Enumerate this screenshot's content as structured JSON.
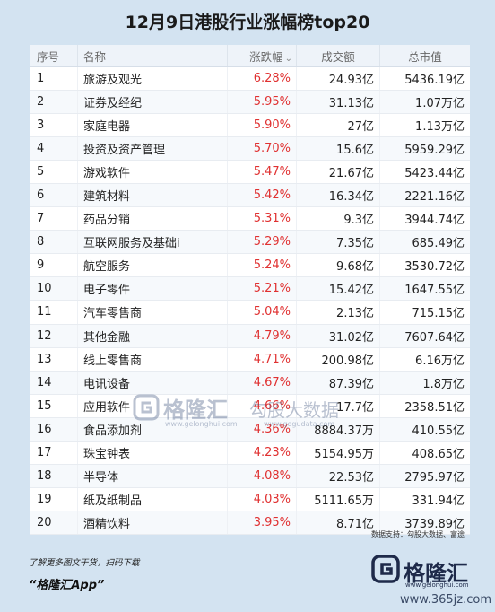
{
  "title": "12月9日港股行业涨幅榜top20",
  "columns": {
    "idx": "序号",
    "name": "名称",
    "change": "涨跌幅",
    "volume": "成交额",
    "market_cap": "总市值"
  },
  "sort_icon": "chevron-down-icon",
  "colors": {
    "up": "#e03131",
    "background": "#d3e3f1",
    "header_bg": "#eef3f9"
  },
  "chart_data": {
    "type": "table",
    "title": "12月9日港股行业涨幅榜top20",
    "columns": [
      "序号",
      "名称",
      "涨跌幅",
      "成交额",
      "总市值"
    ],
    "rows": [
      [
        "1",
        "旅游及观光",
        "6.28%",
        "24.93亿",
        "5436.19亿"
      ],
      [
        "2",
        "证券及经纪",
        "5.95%",
        "31.13亿",
        "1.07万亿"
      ],
      [
        "3",
        "家庭电器",
        "5.90%",
        "27亿",
        "1.13万亿"
      ],
      [
        "4",
        "投资及资产管理",
        "5.70%",
        "15.6亿",
        "5959.29亿"
      ],
      [
        "5",
        "游戏软件",
        "5.47%",
        "21.67亿",
        "5423.44亿"
      ],
      [
        "6",
        "建筑材料",
        "5.42%",
        "16.34亿",
        "2221.16亿"
      ],
      [
        "7",
        "药品分销",
        "5.31%",
        "9.3亿",
        "3944.74亿"
      ],
      [
        "8",
        "互联网服务及基础i",
        "5.29%",
        "7.35亿",
        "685.49亿"
      ],
      [
        "9",
        "航空服务",
        "5.24%",
        "9.68亿",
        "3530.72亿"
      ],
      [
        "10",
        "电子零件",
        "5.21%",
        "15.42亿",
        "1647.55亿"
      ],
      [
        "11",
        "汽车零售商",
        "5.04%",
        "2.13亿",
        "715.15亿"
      ],
      [
        "12",
        "其他金融",
        "4.79%",
        "31.02亿",
        "7607.64亿"
      ],
      [
        "13",
        "线上零售商",
        "4.71%",
        "200.98亿",
        "6.16万亿"
      ],
      [
        "14",
        "电讯设备",
        "4.67%",
        "87.39亿",
        "1.8万亿"
      ],
      [
        "15",
        "应用软件",
        "4.66%",
        "17.7亿",
        "2358.51亿"
      ],
      [
        "16",
        "食品添加剂",
        "4.36%",
        "8884.37万",
        "410.55亿"
      ],
      [
        "17",
        "珠宝钟表",
        "4.23%",
        "5154.95万",
        "408.65亿"
      ],
      [
        "18",
        "半导体",
        "4.08%",
        "22.53亿",
        "2795.97亿"
      ],
      [
        "19",
        "纸及纸制品",
        "4.03%",
        "5111.65万",
        "331.94亿"
      ],
      [
        "20",
        "酒精饮料",
        "3.95%",
        "8.71亿",
        "3739.89亿"
      ]
    ]
  },
  "watermark": {
    "brand": "格隆汇",
    "url": "www.gelonghui.com",
    "tag": "勾股大数据",
    "url2": "www.gogudata.com"
  },
  "source": "数据支持：勾股大数据、富途",
  "footer": {
    "line1": "了解更多图文干货，扫码下载",
    "line2": "“格隆汇App”",
    "brand": "格隆汇",
    "brand_url": "www.gelonghui.com",
    "site": "www.365jz.com"
  }
}
